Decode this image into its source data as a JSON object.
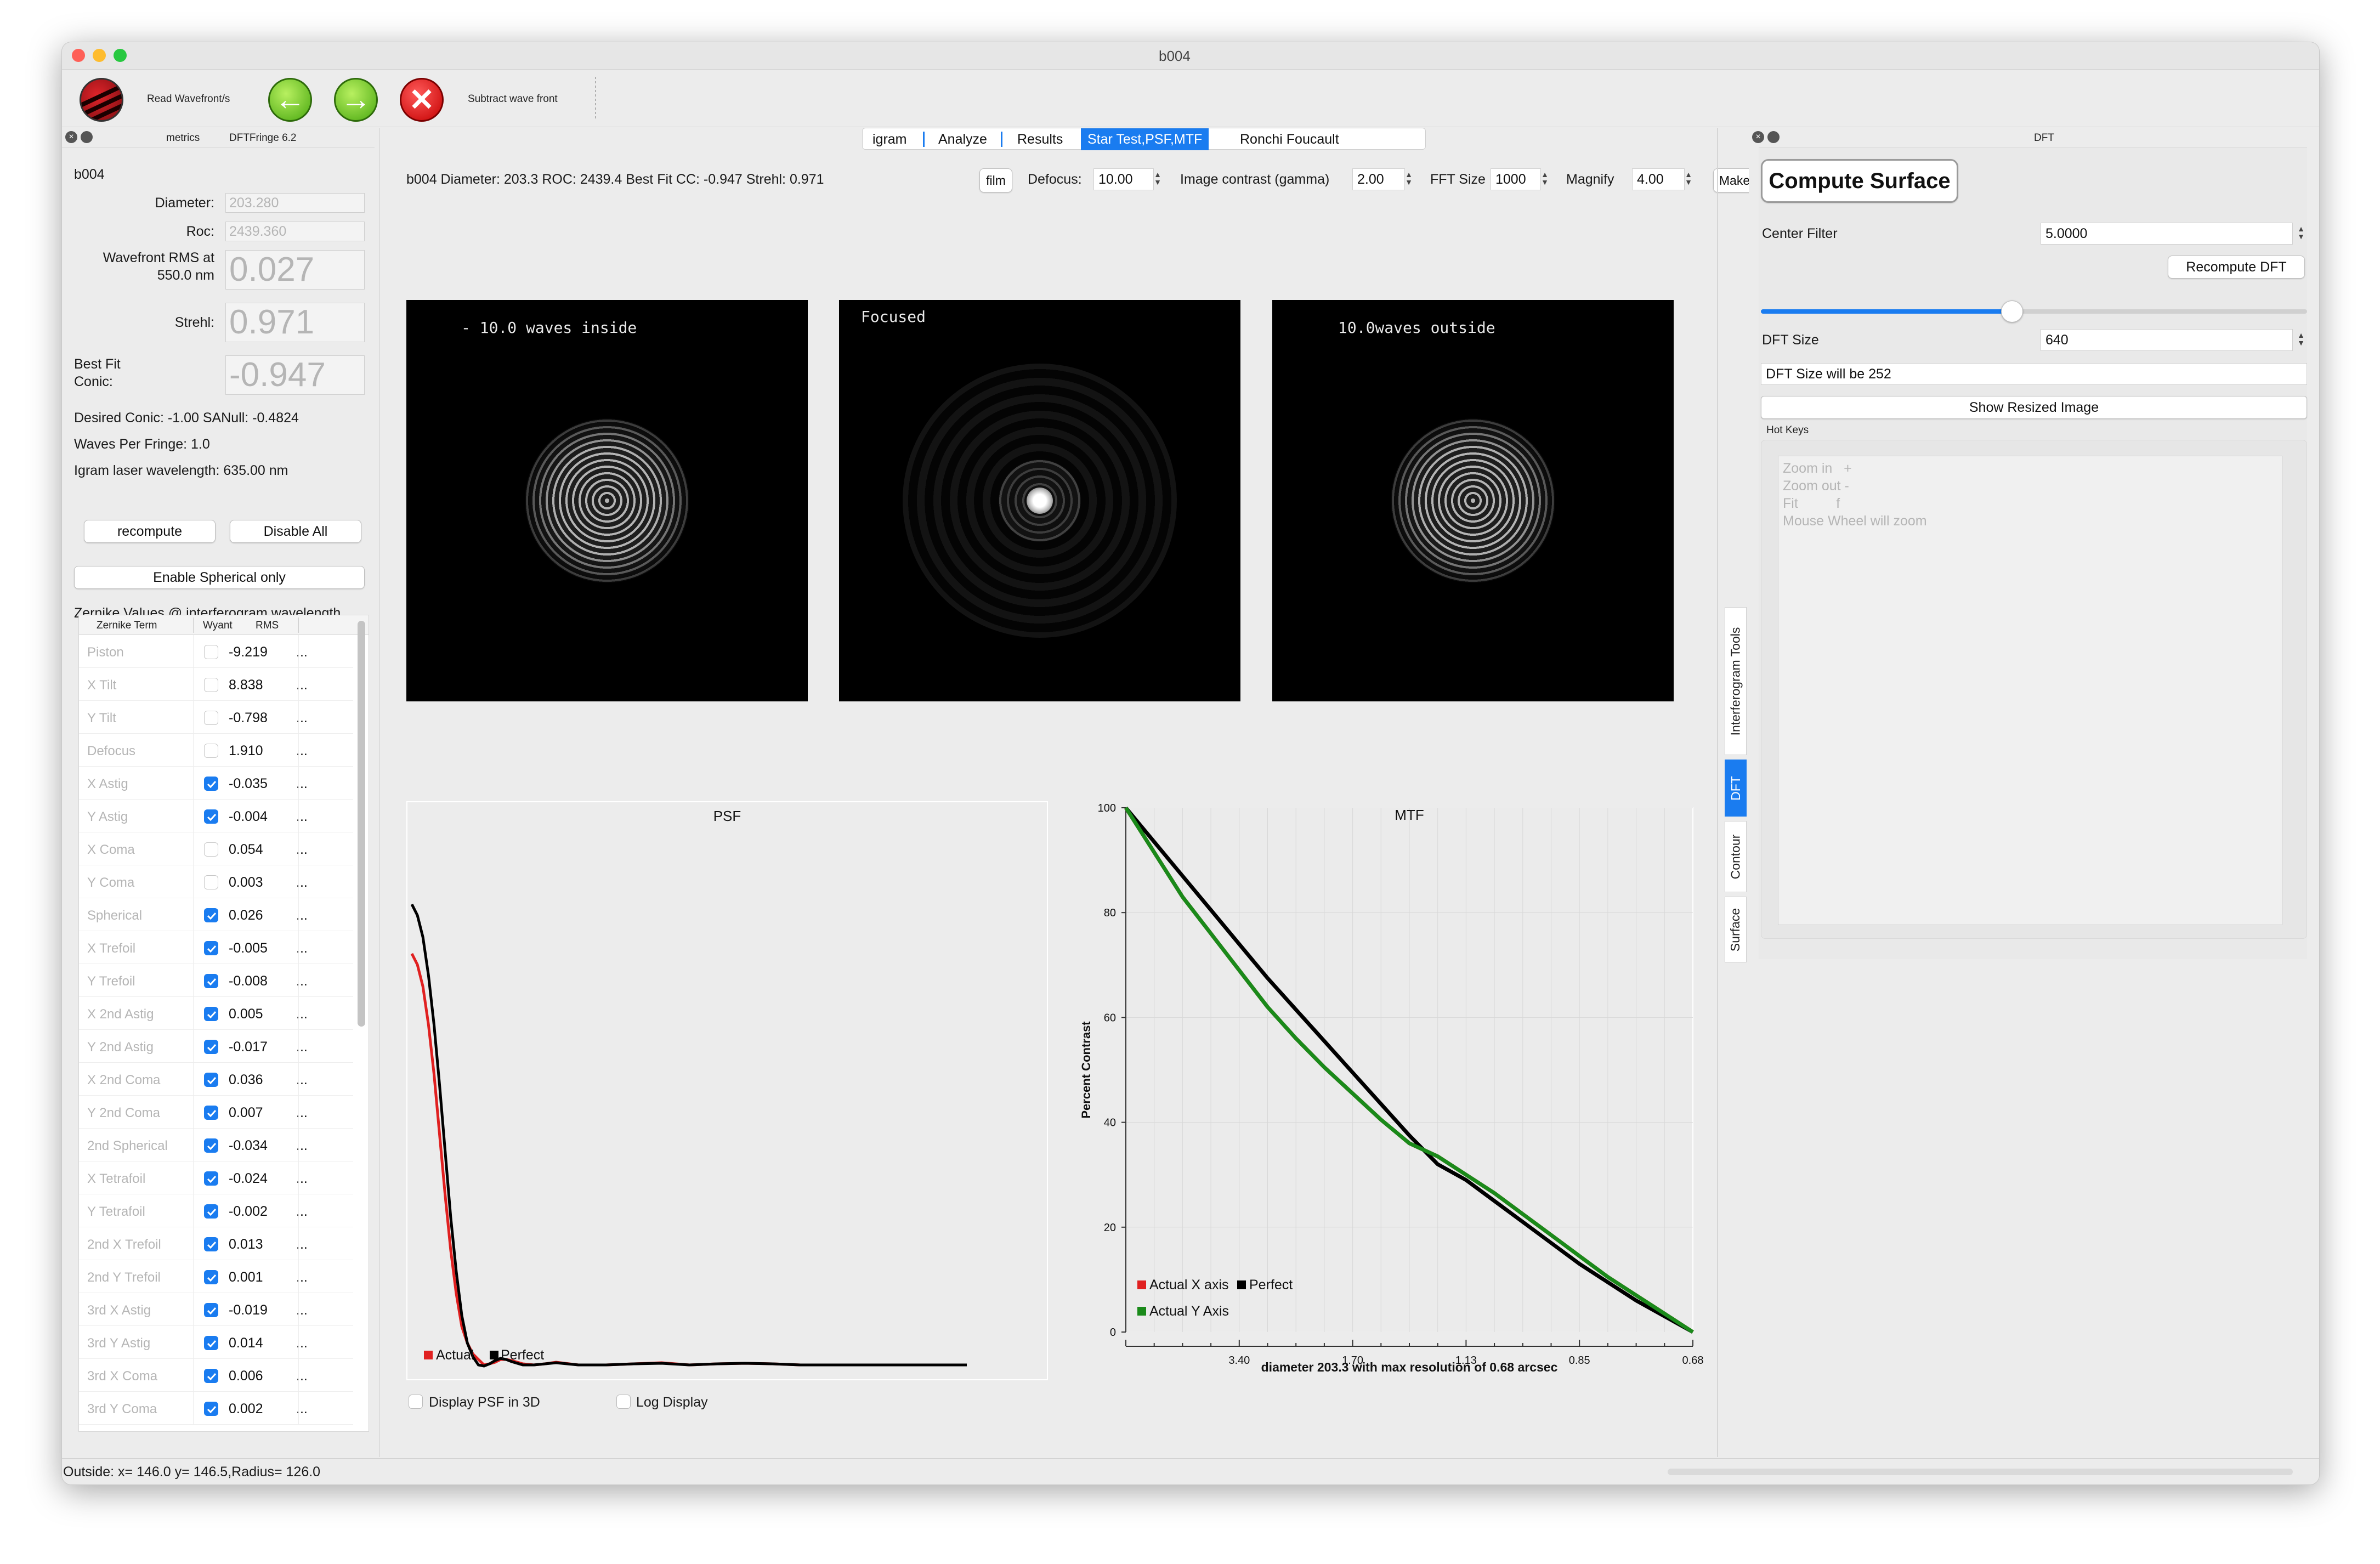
{
  "window": {
    "title": "b004"
  },
  "toolbar": {
    "read_label": "Read Wavefront/s",
    "subtract_label": "Subtract wave front"
  },
  "left_dock": {
    "title_metrics": "metrics",
    "title_app": "DFTFringe 6.2",
    "name": "b004",
    "diameter_label": "Diameter:",
    "diameter_value": "203.280",
    "roc_label": "Roc:",
    "roc_value": "2439.360",
    "rms_label_1": "Wavefront RMS at",
    "rms_label_2": "550.0 nm",
    "rms_value": "0.027",
    "strehl_label": "Strehl:",
    "strehl_value": "0.971",
    "bestfit_label_1": "Best Fit",
    "bestfit_label_2": "Conic:",
    "bestfit_value": "-0.947",
    "desired_conic": "Desired Conic:  -1.00 SANull: -0.4824",
    "waves_per_fringe": "Waves Per Fringe: 1.0",
    "laser": "Igram laser wavelength: 635.00 nm",
    "recompute": "recompute",
    "disable_all": "Disable All",
    "enable_spherical": "Enable Spherical only",
    "zernike_header": "Zernike Values @ interferogram wavelength",
    "col_term": "Zernike Term",
    "col_wyant": "Wyant",
    "col_rms": "RMS",
    "zernikes": [
      {
        "name": "Piston",
        "checked": false,
        "value": "-9.219"
      },
      {
        "name": "X Tilt",
        "checked": false,
        "value": "8.838"
      },
      {
        "name": "Y Tilt",
        "checked": false,
        "value": "-0.798"
      },
      {
        "name": "Defocus",
        "checked": false,
        "value": "1.910"
      },
      {
        "name": "X Astig",
        "checked": true,
        "value": "-0.035"
      },
      {
        "name": "Y Astig",
        "checked": true,
        "value": "-0.004"
      },
      {
        "name": "X Coma",
        "checked": false,
        "value": "0.054"
      },
      {
        "name": "Y Coma",
        "checked": false,
        "value": "0.003"
      },
      {
        "name": "Spherical",
        "checked": true,
        "value": "0.026"
      },
      {
        "name": "X Trefoil",
        "checked": true,
        "value": "-0.005"
      },
      {
        "name": "Y Trefoil",
        "checked": true,
        "value": "-0.008"
      },
      {
        "name": "X 2nd Astig",
        "checked": true,
        "value": "0.005"
      },
      {
        "name": "Y 2nd Astig",
        "checked": true,
        "value": "-0.017"
      },
      {
        "name": "X 2nd Coma",
        "checked": true,
        "value": "0.036"
      },
      {
        "name": "Y 2nd Coma",
        "checked": true,
        "value": "0.007"
      },
      {
        "name": "2nd Spherical",
        "checked": true,
        "value": "-0.034"
      },
      {
        "name": "X Tetrafoil",
        "checked": true,
        "value": "-0.024"
      },
      {
        "name": "Y Tetrafoil",
        "checked": true,
        "value": "-0.002"
      },
      {
        "name": "2nd X Trefoil",
        "checked": true,
        "value": "0.013"
      },
      {
        "name": "2nd Y Trefoil",
        "checked": true,
        "value": "0.001"
      },
      {
        "name": "3rd X Astig",
        "checked": true,
        "value": "-0.019"
      },
      {
        "name": "3rd Y Astig",
        "checked": true,
        "value": "0.014"
      },
      {
        "name": "3rd X Coma",
        "checked": true,
        "value": "0.006"
      },
      {
        "name": "3rd Y Coma",
        "checked": true,
        "value": "0.002"
      }
    ],
    "dots": "..."
  },
  "tabs": [
    "igram",
    "Analyze",
    "Results",
    "Star Test,PSF,MTF",
    "Ronchi  Foucault"
  ],
  "active_tab": "Star Test,PSF,MTF",
  "star_test": {
    "info": "b004   Diameter:  203.3 ROC: 2439.4 Best Fit CC: -0.947 Strehl: 0.971",
    "film": "film",
    "defocus_label": "Defocus:",
    "defocus_value": "10.00",
    "contrast_label": "Image contrast (gamma)",
    "contrast_value": "2.00",
    "fft_label": "FFT Size",
    "fft_value": "1000",
    "magnify_label": "Magnify",
    "magnify_value": "4.00",
    "make": "Make",
    "img_inside": "- 10.0 waves inside",
    "img_focused": "Focused",
    "img_outside": "10.0waves outside",
    "display_3d": "Display PSF in 3D",
    "log_display": "Log Display",
    "status": "Outside: x= 146.0 y= 146.5,Radius=  126.0"
  },
  "chart_data": [
    {
      "type": "line",
      "title": "PSF",
      "legend": [
        "Actual",
        "Perfect"
      ],
      "legend_position": "bottom-left",
      "grid": false,
      "x": [
        0.0,
        0.01,
        0.02,
        0.03,
        0.04,
        0.05,
        0.06,
        0.07,
        0.08,
        0.09,
        0.1,
        0.11,
        0.12,
        0.13,
        0.14,
        0.15,
        0.16,
        0.17,
        0.18,
        0.2,
        0.22,
        0.24,
        0.26,
        0.3,
        0.35,
        0.4,
        0.45,
        0.5,
        0.55,
        0.6,
        0.65,
        0.7,
        0.75,
        0.8,
        0.85,
        0.9,
        0.95,
        1.0
      ],
      "xlim": [
        0,
        1
      ],
      "ylim": [
        0,
        1
      ],
      "series": [
        {
          "name": "Actual",
          "color": "#e02020",
          "values": [
            0.76,
            0.74,
            0.7,
            0.63,
            0.54,
            0.43,
            0.32,
            0.22,
            0.14,
            0.08,
            0.05,
            0.03,
            0.02,
            0.01,
            0.012,
            0.015,
            0.02,
            0.02,
            0.018,
            0.012,
            0.01,
            0.012,
            0.015,
            0.01,
            0.01,
            0.012,
            0.014,
            0.01,
            0.012,
            0.013,
            0.012,
            0.01,
            0.01,
            0.01,
            0.01,
            0.01,
            0.01,
            0.01
          ]
        },
        {
          "name": "Perfect",
          "color": "#000000",
          "values": [
            0.85,
            0.83,
            0.79,
            0.72,
            0.63,
            0.52,
            0.4,
            0.28,
            0.18,
            0.1,
            0.05,
            0.025,
            0.01,
            0.008,
            0.012,
            0.018,
            0.022,
            0.02,
            0.016,
            0.01,
            0.01,
            0.012,
            0.014,
            0.01,
            0.01,
            0.012,
            0.013,
            0.01,
            0.012,
            0.013,
            0.012,
            0.01,
            0.01,
            0.01,
            0.01,
            0.01,
            0.01,
            0.01
          ]
        }
      ]
    },
    {
      "type": "line",
      "title": "MTF",
      "ylabel": "Percent Contrast",
      "xlabel": "diameter  203.3 with max resolution of   0.68 arcsec",
      "yticks": [
        0,
        20,
        40,
        60,
        80,
        100
      ],
      "ylim": [
        0,
        100
      ],
      "xlim": [
        0,
        1
      ],
      "xtick_labels": [
        {
          "at": 0.2,
          "label": "3.40"
        },
        {
          "at": 0.4,
          "label": "1.70"
        },
        {
          "at": 0.6,
          "label": "1.13"
        },
        {
          "at": 0.8,
          "label": "0.85"
        },
        {
          "at": 1.0,
          "label": "0.68"
        }
      ],
      "grid": true,
      "legend": [
        "Actual X axis",
        "Perfect",
        "Actual Y Axis"
      ],
      "legend_position": "bottom-left",
      "x": [
        0.0,
        0.05,
        0.1,
        0.15,
        0.2,
        0.25,
        0.3,
        0.35,
        0.4,
        0.45,
        0.5,
        0.55,
        0.6,
        0.65,
        0.7,
        0.75,
        0.8,
        0.85,
        0.9,
        0.95,
        1.0
      ],
      "series": [
        {
          "name": "Actual X axis",
          "color": "#e02020",
          "values": [
            100,
            91.5,
            83,
            76,
            69,
            62,
            56,
            50.5,
            45.5,
            40.5,
            36,
            33.5,
            30,
            26.5,
            22.5,
            18.5,
            14.5,
            10.5,
            7,
            3.5,
            0
          ]
        },
        {
          "name": "Perfect",
          "color": "#000000",
          "values": [
            100,
            93.5,
            87,
            80.5,
            74,
            67.5,
            61.5,
            55.5,
            49.5,
            43.5,
            37.5,
            32,
            29,
            25,
            21,
            17,
            13,
            9.5,
            6,
            3,
            0
          ]
        },
        {
          "name": "Actual Y Axis",
          "color": "#1a8a1a",
          "values": [
            100,
            91.5,
            83,
            76,
            69,
            62,
            56,
            50.5,
            45.5,
            40.5,
            36,
            33.5,
            30,
            26.5,
            22.5,
            18.5,
            14.5,
            10.5,
            7,
            3.5,
            0
          ]
        }
      ]
    }
  ],
  "side_tabs": [
    "Interferogram Tools",
    "DFT",
    "Contour",
    "Surface"
  ],
  "active_side_tab": "DFT",
  "right_dock": {
    "title": "DFT",
    "compute_surface": "Compute Surface",
    "center_filter_label": "Center Filter",
    "center_filter_value": "5.0000",
    "slider_value": 0.5,
    "recompute_dft": "Recompute DFT",
    "dft_size_label": "DFT Size",
    "dft_size_value": "640",
    "dft_size_will_be": "DFT Size will be 252",
    "show_resized": "Show Resized Image",
    "hot_keys": "Hot Keys",
    "hotkey_lines": [
      "Zoom in   +",
      "Zoom out -",
      "Fit          f",
      "Mouse Wheel will zoom"
    ]
  },
  "colors": {
    "accent": "#1a7cf0",
    "window_bg": "#ececec"
  }
}
